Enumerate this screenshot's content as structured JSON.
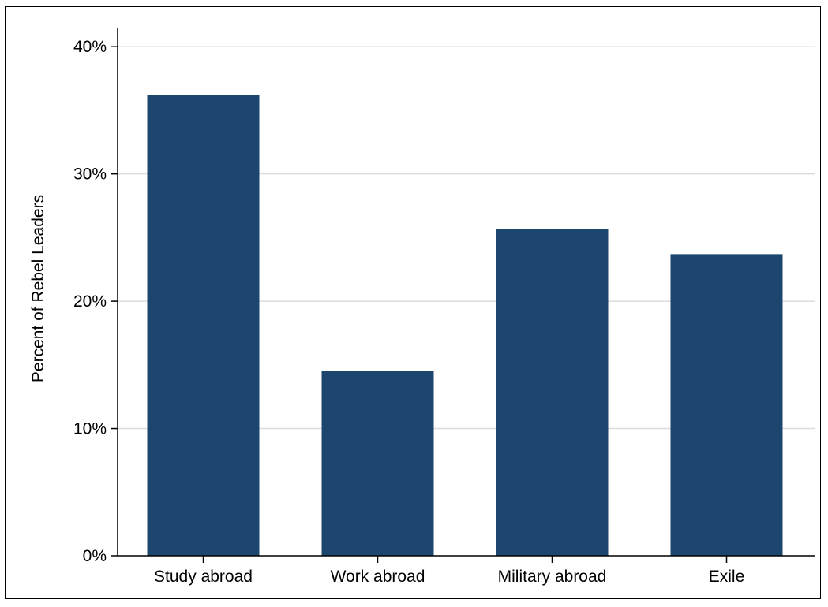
{
  "chart_data": {
    "type": "bar",
    "title": "",
    "xlabel": "",
    "ylabel": "Percent of Rebel Leaders",
    "categories": [
      "Study abroad",
      "Work abroad",
      "Military abroad",
      "Exile"
    ],
    "values": [
      36.2,
      14.5,
      25.7,
      23.7
    ],
    "ylim": [
      0,
      41.5
    ],
    "yticks": [
      0,
      10,
      20,
      30,
      40
    ],
    "ytick_labels": [
      "0%",
      "10%",
      "20%",
      "30%",
      "40%"
    ],
    "grid": true,
    "legend": "none",
    "colors": {
      "bar": "#1c466d",
      "grid": "#dcdcdc",
      "axis": "#000000"
    }
  }
}
